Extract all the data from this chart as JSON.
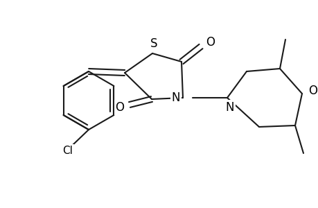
{
  "background_color": "#ffffff",
  "line_color": "#1a1a1a",
  "line_width": 1.5,
  "figsize": [
    4.6,
    3.0
  ],
  "dpi": 100,
  "xlim": [
    0,
    460
  ],
  "ylim": [
    0,
    300
  ]
}
